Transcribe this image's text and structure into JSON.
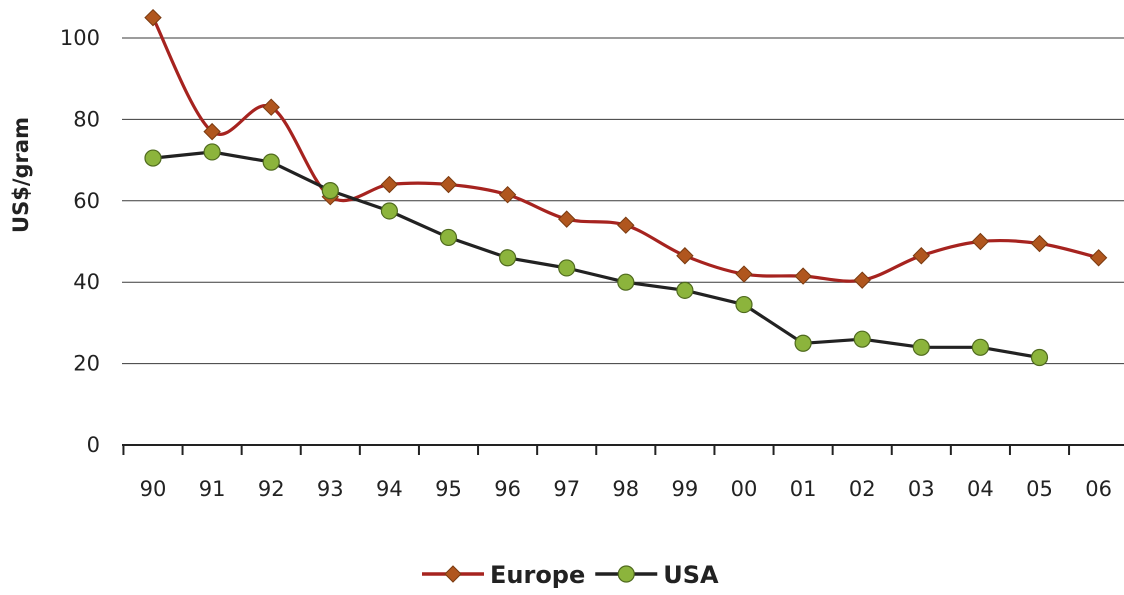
{
  "chart_data": {
    "type": "line",
    "title": "",
    "xlabel": "",
    "ylabel": "US$/gram",
    "ylim": [
      0,
      100
    ],
    "yticks": [
      0,
      20,
      40,
      60,
      80,
      100
    ],
    "grid": true,
    "legend_position": "bottom-center",
    "categories": [
      "90",
      "91",
      "92",
      "93",
      "94",
      "95",
      "96",
      "97",
      "98",
      "99",
      "00",
      "01",
      "02",
      "03",
      "04",
      "05",
      "06"
    ],
    "series": [
      {
        "name": "Europe",
        "color": "#a6231f",
        "marker": "diamond",
        "marker_color": "#b0561e",
        "smooth": true,
        "values": [
          105,
          77,
          83,
          61,
          64,
          64,
          61.5,
          55.5,
          54,
          46.5,
          42,
          41.5,
          40.5,
          46.5,
          50,
          49.5,
          46
        ]
      },
      {
        "name": "USA",
        "color": "#222222",
        "marker": "circle",
        "marker_color": "#8cb43c",
        "smooth": false,
        "values": [
          70.5,
          72,
          69.5,
          62.5,
          57.5,
          51,
          46,
          43.5,
          40,
          38,
          34.5,
          25,
          26,
          24,
          24,
          21.5,
          null
        ]
      }
    ]
  }
}
